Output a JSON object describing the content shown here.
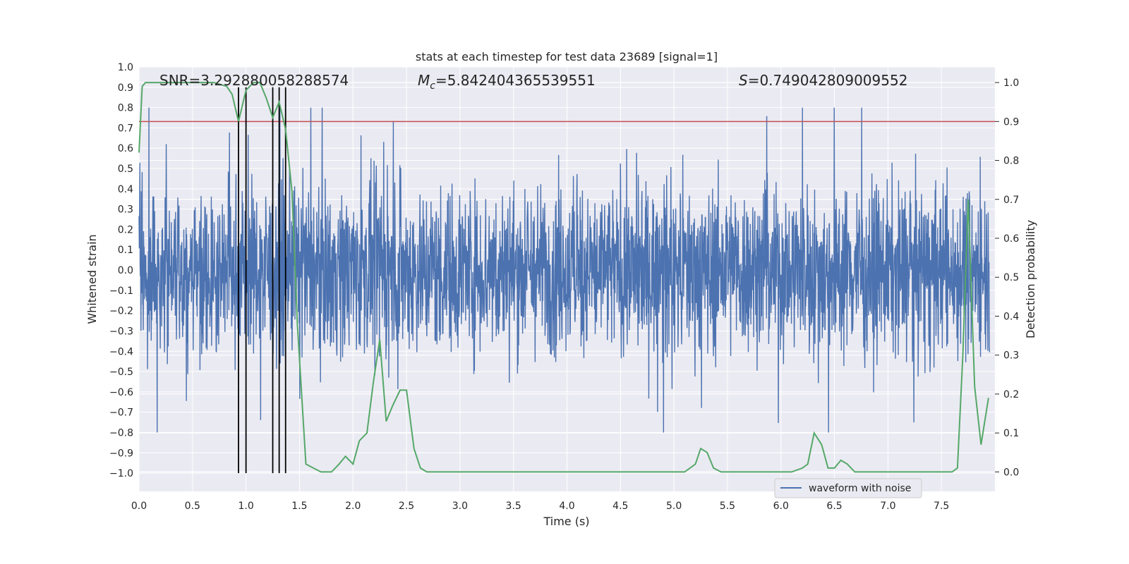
{
  "chart_data": {
    "type": "line",
    "title": "stats at each timestep for test data 23689 [signal=1]",
    "xlabel": "Time (s)",
    "ylabel": "Whitened strain",
    "y2label": "Detection probability",
    "xlim": [
      0,
      8
    ],
    "ylim": [
      -1.09,
      1.0
    ],
    "y2lim": [
      -0.05,
      1.04
    ],
    "xticks": [
      "0.0",
      "0.5",
      "1.0",
      "1.5",
      "2.0",
      "2.5",
      "3.0",
      "3.5",
      "4.0",
      "4.5",
      "5.0",
      "5.5",
      "6.0",
      "6.5",
      "7.0",
      "7.5"
    ],
    "yticks": [
      "1.0",
      "0.9",
      "0.8",
      "0.7",
      "0.6",
      "0.5",
      "0.4",
      "0.3",
      "0.2",
      "0.1",
      "0.0",
      "−0.1",
      "−0.2",
      "−0.3",
      "−0.4",
      "−0.5",
      "−0.6",
      "−0.7",
      "−0.8",
      "−0.9",
      "−1.0"
    ],
    "y2ticks": [
      "1.0",
      "0.9",
      "0.8",
      "0.7",
      "0.6",
      "0.5",
      "0.4",
      "0.3",
      "0.2",
      "0.1",
      "0.0"
    ],
    "annotations": {
      "snr": "SNR=3.292880058288574",
      "mc_symbol": "M",
      "mc_subscript": "c",
      "mc_value": "=5.842404365539551",
      "s_symbol": "S",
      "s_value": "=0.749042809009552"
    },
    "threshold": 0.9,
    "vlines": [
      0.93,
      1.0,
      1.25,
      1.31,
      1.37
    ],
    "series": [
      {
        "name": "waveform with noise",
        "color": "#4c72b0",
        "envelope": "noise amplitude ~0.4 to 0.75 with sparse peaks up to 0.8 and troughs to -0.8"
      },
      {
        "name": "detection probability",
        "color": "#55a868",
        "x": [
          0.0,
          0.03,
          0.06,
          0.12,
          0.25,
          0.5,
          0.7,
          0.82,
          0.87,
          0.93,
          1.0,
          1.07,
          1.13,
          1.19,
          1.25,
          1.31,
          1.37,
          1.43,
          1.48,
          1.56,
          1.63,
          1.7,
          1.75,
          1.8,
          1.87,
          1.93,
          2.0,
          2.06,
          2.13,
          2.19,
          2.25,
          2.31,
          2.37,
          2.44,
          2.5,
          2.57,
          2.63,
          2.69,
          2.75,
          2.82,
          2.88,
          2.94,
          3.0,
          3.2,
          3.5,
          4.0,
          4.1,
          4.2,
          4.3,
          4.5,
          4.7,
          4.8,
          4.9,
          5.0,
          5.1,
          5.2,
          5.25,
          5.31,
          5.37,
          5.44,
          5.5,
          5.6,
          5.7,
          6.0,
          6.1,
          6.2,
          6.25,
          6.31,
          6.38,
          6.44,
          6.5,
          6.56,
          6.62,
          6.69,
          6.75,
          7.0,
          7.5,
          7.6,
          7.65,
          7.7,
          7.75,
          7.81,
          7.87,
          7.94
        ],
        "y": [
          0.82,
          0.99,
          1.0,
          1.0,
          1.0,
          1.0,
          1.0,
          0.99,
          0.97,
          0.9,
          0.98,
          1.0,
          1.0,
          0.96,
          0.91,
          0.95,
          0.88,
          0.72,
          0.38,
          0.02,
          0.01,
          0.0,
          0.0,
          0.0,
          0.02,
          0.04,
          0.02,
          0.08,
          0.1,
          0.23,
          0.34,
          0.13,
          0.17,
          0.21,
          0.21,
          0.06,
          0.01,
          0.0,
          0.0,
          0.0,
          0.0,
          0.0,
          0.0,
          0.0,
          0.0,
          0.0,
          0.0,
          0.0,
          0.0,
          0.0,
          0.0,
          0.0,
          0.0,
          0.0,
          0.0,
          0.02,
          0.06,
          0.05,
          0.01,
          0.0,
          0.0,
          0.0,
          0.0,
          0.0,
          0.0,
          0.01,
          0.02,
          0.1,
          0.07,
          0.01,
          0.01,
          0.03,
          0.02,
          0.0,
          0.0,
          0.0,
          0.0,
          0.0,
          0.01,
          0.3,
          0.7,
          0.22,
          0.07,
          0.19
        ]
      }
    ],
    "legend": {
      "label": "waveform with noise",
      "position": "lower-right"
    }
  },
  "colors": {
    "background": "#eaeaf2",
    "grid": "#ffffff",
    "waveform": "#4c72b0",
    "probability": "#55a868",
    "threshold": "#c44e52",
    "vline": "#000000"
  }
}
